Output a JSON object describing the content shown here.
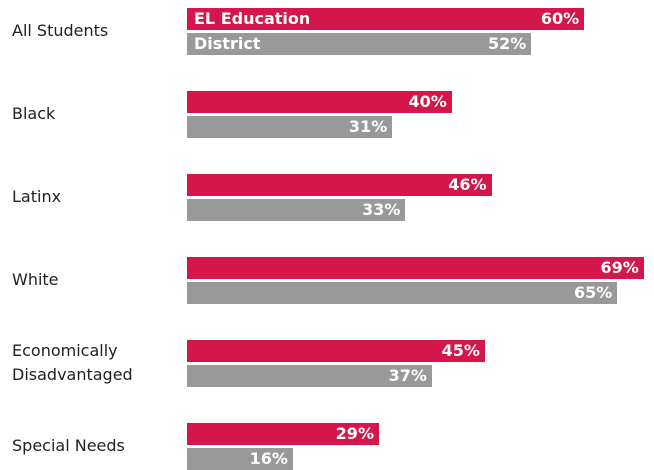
{
  "chart_data": {
    "type": "bar",
    "orientation": "horizontal",
    "categories": [
      "All Students",
      "Black",
      "Latinx",
      "White",
      "Economically Disadvantaged",
      "Special Needs"
    ],
    "series": [
      {
        "name": "EL Education",
        "color": "#d5164b",
        "values": [
          60,
          40,
          46,
          69,
          45,
          29
        ],
        "value_labels": [
          "60%",
          "40%",
          "46%",
          "69%",
          "45%",
          "29%"
        ]
      },
      {
        "name": "District",
        "color": "#999999",
        "values": [
          52,
          31,
          33,
          65,
          37,
          16
        ],
        "value_labels": [
          "52%",
          "31%",
          "33%",
          "65%",
          "37%",
          "16%"
        ]
      }
    ]
  }
}
